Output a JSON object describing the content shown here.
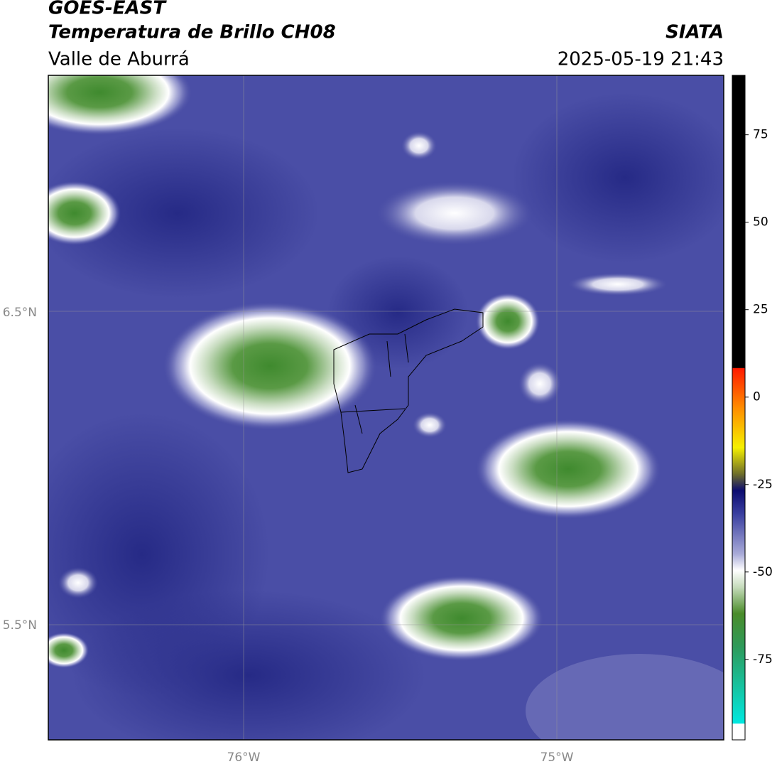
{
  "header": {
    "title": "GOES-EAST",
    "subtitle": "Temperatura de Brillo CH08",
    "region": "Valle de Aburrá",
    "source": "SIATA",
    "datetime": "2025-05-19 21:43"
  },
  "map": {
    "lat_ticks": [
      "6.5°N",
      "5.5°N"
    ],
    "lon_ticks": [
      "76°W",
      "75°W"
    ]
  },
  "colorbar": {
    "clim": [
      -98,
      92
    ],
    "ticks": [
      75,
      50,
      25,
      0,
      -25,
      -50,
      -75
    ]
  }
}
